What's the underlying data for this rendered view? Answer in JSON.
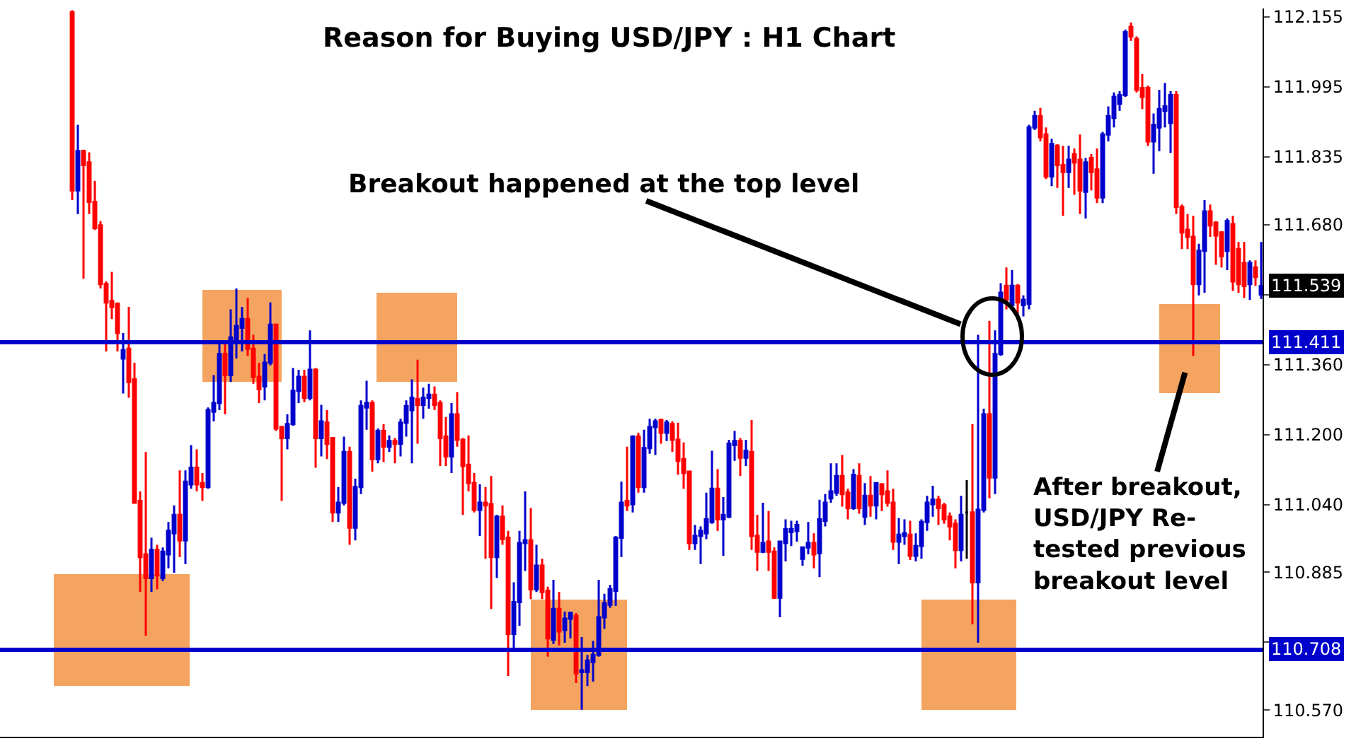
{
  "chart_data": {
    "type": "candlestick",
    "title": "Reason for Buying USD/JPY : H1 Chart",
    "categories": [
      null,
      null,
      null,
      null,
      null,
      null,
      null,
      null,
      null,
      null,
      null,
      null,
      null,
      null,
      null,
      null,
      null,
      null,
      null,
      null,
      null,
      null,
      null,
      null,
      null,
      null,
      null,
      null,
      null,
      null,
      null,
      null,
      null,
      null,
      null,
      null,
      null,
      null,
      null,
      null,
      null,
      null,
      null,
      null,
      null,
      null,
      null,
      null,
      null,
      null,
      null,
      null,
      null,
      null,
      null,
      null,
      null,
      null,
      null,
      null,
      null,
      null,
      null,
      null,
      null,
      null,
      null,
      null,
      null,
      null,
      null,
      null,
      null,
      null,
      null,
      null,
      null,
      null,
      null,
      null,
      null,
      null,
      null,
      null,
      null,
      null,
      null,
      null,
      null,
      null,
      null,
      null,
      null,
      null,
      null,
      null,
      null,
      null,
      null,
      null,
      null,
      null,
      null,
      null,
      null,
      null,
      null,
      null,
      null,
      null,
      null,
      null,
      null,
      null,
      null,
      null,
      null,
      null,
      null,
      null,
      null,
      null,
      null,
      null,
      null,
      null,
      null,
      null,
      null,
      null,
      null,
      null,
      null,
      null,
      null,
      null,
      null,
      null,
      null,
      null,
      null,
      null,
      null,
      null,
      null,
      null,
      null,
      null,
      null,
      null,
      null,
      null,
      null,
      null,
      null,
      null,
      null,
      null,
      null,
      null,
      null,
      null,
      null,
      null,
      null,
      null,
      null,
      null,
      null,
      null,
      null,
      null,
      null,
      null,
      null,
      null,
      null,
      null,
      null,
      null,
      null,
      null,
      null,
      null,
      null,
      null,
      null,
      null,
      null,
      null,
      null,
      null,
      null,
      null,
      null,
      null,
      null,
      null,
      null,
      null,
      null,
      null,
      null,
      null,
      null,
      null,
      null,
      null,
      null,
      null,
      null
    ],
    "ohlc": [
      [
        112.165,
        112.17,
        111.736,
        111.758
      ],
      [
        111.758,
        111.908,
        111.704,
        111.848
      ],
      [
        111.848,
        111.851,
        111.556,
        111.816
      ],
      [
        111.822,
        111.845,
        111.704,
        111.732
      ],
      [
        111.732,
        111.78,
        111.668,
        111.672
      ],
      [
        111.678,
        111.688,
        111.534,
        111.544
      ],
      [
        111.544,
        111.55,
        111.39,
        111.502
      ],
      [
        111.505,
        111.572,
        111.464,
        111.492
      ],
      [
        111.499,
        111.502,
        111.39,
        111.432
      ],
      [
        111.374,
        111.432,
        111.294,
        111.393
      ],
      [
        111.396,
        111.492,
        111.284,
        111.32
      ],
      [
        111.326,
        111.364,
        111.044,
        111.044
      ],
      [
        111.048,
        111.07,
        110.84,
        110.92
      ],
      [
        110.926,
        111.16,
        110.74,
        110.872
      ],
      [
        110.872,
        110.964,
        110.84,
        110.936
      ],
      [
        110.936,
        110.948,
        110.846,
        110.878
      ],
      [
        110.872,
        110.942,
        110.865,
        110.932
      ],
      [
        110.926,
        111.0,
        110.894,
        110.98
      ],
      [
        110.974,
        111.038,
        110.884,
        111.016
      ],
      [
        111.016,
        111.118,
        110.92,
        110.958
      ],
      [
        110.958,
        111.118,
        110.904,
        111.092
      ],
      [
        111.086,
        111.176,
        111.076,
        111.124
      ],
      [
        111.124,
        111.166,
        111.07,
        111.086
      ],
      [
        111.089,
        111.112,
        111.048,
        111.08
      ],
      [
        111.08,
        111.262,
        111.076,
        111.256
      ],
      [
        111.252,
        111.336,
        111.23,
        111.272
      ],
      [
        111.272,
        111.412,
        111.256,
        111.384
      ],
      [
        111.384,
        111.412,
        111.246,
        111.336
      ],
      [
        111.336,
        111.486,
        111.32,
        111.422
      ],
      [
        111.416,
        111.534,
        111.374,
        111.448
      ],
      [
        111.444,
        111.492,
        111.39,
        111.464
      ],
      [
        111.464,
        111.512,
        111.38,
        111.396
      ],
      [
        111.396,
        111.428,
        111.316,
        111.332
      ],
      [
        111.332,
        111.364,
        111.272,
        111.304
      ],
      [
        111.31,
        111.384,
        111.278,
        111.364
      ],
      [
        111.364,
        111.502,
        111.358,
        111.451
      ],
      [
        111.451,
        111.454,
        111.208,
        111.214
      ],
      [
        111.217,
        111.22,
        111.048,
        111.192
      ],
      [
        111.192,
        111.246,
        111.166,
        111.224
      ],
      [
        111.224,
        111.352,
        111.22,
        111.3
      ],
      [
        111.3,
        111.348,
        111.272,
        111.332
      ],
      [
        111.332,
        111.348,
        111.274,
        111.284
      ],
      [
        111.284,
        111.438,
        111.278,
        111.348
      ],
      [
        111.348,
        111.352,
        111.124,
        111.192
      ],
      [
        111.192,
        111.268,
        111.15,
        111.23
      ],
      [
        111.227,
        111.256,
        111.144,
        111.179
      ],
      [
        111.192,
        111.192,
        111.0,
        111.022
      ],
      [
        111.022,
        111.08,
        111.0,
        111.044
      ],
      [
        111.044,
        111.195,
        111.038,
        111.16
      ],
      [
        111.16,
        111.172,
        110.948,
        110.987
      ],
      [
        110.987,
        111.099,
        110.958,
        111.08
      ],
      [
        111.08,
        111.278,
        111.064,
        111.265
      ],
      [
        111.262,
        111.323,
        111.211,
        111.272
      ],
      [
        111.272,
        111.278,
        111.115,
        111.144
      ],
      [
        111.144,
        111.214,
        111.134,
        111.208
      ],
      [
        111.208,
        111.224,
        111.137,
        111.172
      ],
      [
        111.172,
        111.198,
        111.16,
        111.185
      ],
      [
        111.185,
        111.192,
        111.134,
        111.179
      ],
      [
        111.179,
        111.236,
        111.15,
        111.227
      ],
      [
        111.227,
        111.278,
        111.195,
        111.265
      ],
      [
        111.256,
        111.326,
        111.134,
        111.284
      ],
      [
        111.281,
        111.371,
        111.179,
        111.268
      ],
      [
        111.268,
        111.307,
        111.236,
        111.284
      ],
      [
        111.284,
        111.316,
        111.259,
        111.291
      ],
      [
        111.291,
        111.31,
        111.256,
        111.268
      ],
      [
        111.272,
        111.278,
        111.128,
        111.192
      ],
      [
        111.195,
        111.24,
        111.128,
        111.15
      ],
      [
        111.15,
        111.272,
        111.112,
        111.246
      ],
      [
        111.246,
        111.297,
        111.172,
        111.188
      ],
      [
        111.188,
        111.192,
        111.016,
        111.128
      ],
      [
        111.131,
        111.198,
        111.07,
        111.089
      ],
      [
        111.089,
        111.112,
        111.022,
        111.028
      ],
      [
        111.028,
        111.086,
        110.968,
        111.044
      ],
      [
        111.044,
        111.08,
        110.916,
        111.038
      ],
      [
        111.041,
        111.105,
        110.801,
        110.92
      ],
      [
        110.92,
        111.016,
        110.872,
        111.012
      ],
      [
        111.012,
        111.038,
        110.948,
        110.961
      ],
      [
        110.964,
        110.98,
        110.648,
        110.744
      ],
      [
        110.744,
        110.862,
        110.712,
        110.817
      ],
      [
        110.817,
        110.98,
        110.763,
        110.952
      ],
      [
        110.952,
        111.07,
        110.888,
        110.958
      ],
      [
        110.958,
        111.032,
        110.824,
        110.846
      ],
      [
        110.846,
        110.948,
        110.84,
        110.9
      ],
      [
        110.9,
        110.916,
        110.824,
        110.84
      ],
      [
        110.843,
        110.852,
        110.692,
        110.734
      ],
      [
        110.731,
        110.868,
        110.721,
        110.801
      ],
      [
        110.801,
        110.84,
        110.718,
        110.75
      ],
      [
        110.753,
        110.795,
        110.724,
        110.779
      ],
      [
        110.779,
        110.795,
        110.734,
        110.792
      ],
      [
        110.785,
        110.792,
        110.632,
        110.654
      ],
      [
        110.657,
        110.737,
        110.571,
        110.661
      ],
      [
        110.657,
        110.696,
        110.625,
        110.683
      ],
      [
        110.68,
        110.728,
        110.635,
        110.696
      ],
      [
        110.696,
        110.868,
        110.692,
        110.782
      ],
      [
        110.782,
        110.836,
        110.756,
        110.814
      ],
      [
        110.811,
        110.856,
        110.804,
        110.846
      ],
      [
        110.843,
        110.968,
        110.808,
        110.964
      ],
      [
        110.964,
        111.092,
        110.92,
        111.044
      ],
      [
        111.048,
        111.172,
        111.025,
        111.038
      ],
      [
        111.041,
        111.198,
        111.022,
        111.195
      ],
      [
        111.195,
        111.204,
        111.067,
        111.08
      ],
      [
        111.08,
        111.211,
        111.067,
        111.169
      ],
      [
        111.169,
        111.236,
        111.156,
        111.217
      ],
      [
        111.217,
        111.236,
        111.153,
        111.23
      ],
      [
        111.233,
        111.236,
        111.179,
        111.204
      ],
      [
        111.204,
        111.233,
        111.185,
        111.227
      ],
      [
        111.224,
        111.23,
        111.16,
        111.188
      ],
      [
        111.188,
        111.227,
        111.108,
        111.14
      ],
      [
        111.144,
        111.182,
        111.076,
        111.112
      ],
      [
        111.115,
        111.115,
        110.936,
        110.952
      ],
      [
        110.952,
        110.993,
        110.936,
        110.968
      ],
      [
        110.968,
        110.99,
        110.904,
        110.98
      ],
      [
        110.974,
        111.067,
        110.961,
        111.006
      ],
      [
        111.0,
        111.163,
        110.996,
        111.076
      ],
      [
        111.076,
        111.121,
        110.98,
        111.006
      ],
      [
        111.006,
        111.057,
        110.923,
        111.016
      ],
      [
        111.012,
        111.188,
        111.009,
        111.179
      ],
      [
        111.176,
        111.208,
        111.14,
        111.185
      ],
      [
        111.185,
        111.192,
        111.105,
        111.147
      ],
      [
        111.147,
        111.188,
        111.128,
        111.163
      ],
      [
        111.16,
        111.233,
        110.936,
        110.968
      ],
      [
        110.968,
        111.016,
        110.888,
        110.932
      ],
      [
        110.932,
        111.044,
        110.929,
        110.952
      ],
      [
        110.955,
        111.025,
        110.888,
        110.932
      ],
      [
        110.932,
        110.942,
        110.824,
        110.827
      ],
      [
        110.827,
        110.955,
        110.782,
        110.955
      ],
      [
        110.952,
        111.006,
        110.91,
        110.984
      ],
      [
        110.977,
        111.003,
        110.945,
        110.984
      ],
      [
        110.98,
        111.003,
        110.955,
        110.993
      ],
      [
        110.916,
        110.942,
        110.9,
        110.942
      ],
      [
        110.942,
        111.0,
        110.926,
        110.952
      ],
      [
        110.952,
        110.974,
        110.894,
        110.926
      ],
      [
        110.929,
        111.051,
        110.874,
        111.006
      ],
      [
        111.003,
        111.064,
        110.99,
        111.044
      ],
      [
        111.054,
        111.134,
        111.044,
        111.07
      ],
      [
        111.067,
        111.134,
        111.06,
        111.105
      ],
      [
        111.105,
        111.153,
        111.035,
        111.064
      ],
      [
        111.067,
        111.076,
        111.006,
        111.032
      ],
      [
        111.032,
        111.121,
        111.028,
        111.108
      ],
      [
        111.105,
        111.134,
        111.019,
        111.032
      ],
      [
        111.012,
        111.089,
        110.993,
        111.06
      ],
      [
        111.06,
        111.105,
        111.012,
        111.038
      ],
      [
        111.038,
        111.089,
        111.006,
        111.089
      ],
      [
        111.086,
        111.089,
        111.025,
        111.064
      ],
      [
        111.07,
        111.118,
        111.035,
        111.044
      ],
      [
        111.044,
        111.076,
        110.936,
        110.955
      ],
      [
        110.955,
        111.009,
        110.904,
        110.971
      ],
      [
        110.968,
        111.006,
        110.948,
        110.974
      ],
      [
        110.971,
        111.003,
        110.913,
        110.923
      ],
      [
        110.923,
        110.974,
        110.91,
        110.945
      ],
      [
        110.945,
        111.006,
        110.916,
        111.0
      ],
      [
        111.0,
        111.06,
        110.98,
        111.044
      ],
      [
        111.041,
        111.083,
        111.012,
        111.051
      ],
      [
        111.051,
        111.06,
        110.993,
        111.032
      ],
      [
        111.038,
        111.044,
        110.996,
        111.006
      ],
      [
        111.012,
        111.022,
        110.958,
        110.99
      ],
      [
        110.996,
        111.006,
        110.894,
        110.936
      ],
      [
        110.936,
        111.06,
        110.91,
        111.016
      ],
      [
        111.022,
        111.096,
        110.916,
        111.022
      ],
      [
        111.022,
        111.224,
        110.766,
        110.862
      ],
      [
        110.862,
        111.428,
        110.724,
        111.028
      ],
      [
        111.028,
        111.259,
        111.022,
        111.246
      ],
      [
        111.246,
        111.46,
        111.054,
        111.102
      ],
      [
        111.102,
        111.438,
        111.064,
        111.384
      ],
      [
        111.384,
        111.546,
        111.38,
        111.524
      ],
      [
        111.54,
        111.582,
        111.486,
        111.508
      ],
      [
        111.496,
        111.576,
        111.486,
        111.54
      ],
      [
        111.54,
        111.544,
        111.47,
        111.502
      ],
      [
        111.496,
        111.518,
        111.47,
        111.508
      ],
      [
        111.499,
        111.908,
        111.486,
        111.902
      ],
      [
        111.902,
        111.94,
        111.896,
        111.928
      ],
      [
        111.928,
        111.947,
        111.87,
        111.88
      ],
      [
        111.886,
        111.902,
        111.784,
        111.79
      ],
      [
        111.79,
        111.876,
        111.768,
        111.864
      ],
      [
        111.86,
        111.864,
        111.764,
        111.816
      ],
      [
        111.816,
        111.86,
        111.7,
        111.8
      ],
      [
        111.8,
        111.86,
        111.764,
        111.828
      ],
      [
        111.841,
        111.854,
        111.748,
        111.822
      ],
      [
        111.828,
        111.886,
        111.704,
        111.758
      ],
      [
        111.755,
        111.832,
        111.694,
        111.822
      ],
      [
        111.832,
        111.841,
        111.758,
        111.8
      ],
      [
        111.806,
        111.854,
        111.729,
        111.742
      ],
      [
        111.742,
        111.892,
        111.729,
        111.886
      ],
      [
        111.886,
        111.95,
        111.87,
        111.928
      ],
      [
        111.924,
        111.982,
        111.902,
        111.972
      ],
      [
        111.956,
        111.985,
        111.94,
        111.976
      ],
      [
        111.976,
        112.126,
        111.972,
        112.12
      ],
      [
        112.132,
        112.142,
        112.1,
        112.11
      ],
      [
        112.104,
        112.11,
        111.982,
        111.988
      ],
      [
        111.992,
        112.024,
        111.944,
        111.972
      ],
      [
        111.992,
        111.998,
        111.86,
        111.87
      ],
      [
        111.87,
        111.934,
        111.796,
        111.908
      ],
      [
        111.902,
        111.988,
        111.848,
        111.944
      ],
      [
        111.94,
        112.004,
        111.902,
        111.95
      ],
      [
        111.912,
        111.985,
        111.844,
        111.976
      ],
      [
        111.976,
        111.985,
        111.704,
        111.72
      ],
      [
        111.72,
        111.726,
        111.624,
        111.662
      ],
      [
        111.668,
        111.704,
        111.624,
        111.652
      ],
      [
        111.652,
        111.7,
        111.38,
        111.544
      ],
      [
        111.544,
        111.636,
        111.518,
        111.62
      ],
      [
        111.62,
        111.736,
        111.524,
        111.71
      ],
      [
        111.71,
        111.726,
        111.652,
        111.678
      ],
      [
        111.684,
        111.688,
        111.588,
        111.655
      ],
      [
        111.662,
        111.665,
        111.582,
        111.608
      ],
      [
        111.62,
        111.694,
        111.576,
        111.688
      ],
      [
        111.681,
        111.7,
        111.528,
        111.55
      ],
      [
        111.624,
        111.64,
        111.524,
        111.544
      ],
      [
        111.592,
        111.64,
        111.512,
        111.54
      ],
      [
        111.544,
        111.598,
        111.508,
        111.592
      ],
      [
        111.582,
        111.598,
        111.54,
        111.56
      ],
      [
        111.52,
        111.64,
        111.51,
        111.539
      ]
    ],
    "colors": [
      "#ff0000",
      "#0000cc",
      "#ff0000",
      "#ff0000",
      "#ff0000",
      "#ff0000",
      "#ff0000",
      "#ff0000",
      "#ff0000",
      "#0000cc",
      "#ff0000",
      "#ff0000",
      "#ff0000",
      "#ff0000",
      "#0000cc",
      "#ff0000",
      "#0000cc",
      "#0000cc",
      "#0000cc",
      "#ff0000",
      "#0000cc",
      "#0000cc",
      "#ff0000",
      "#ff0000",
      "#0000cc",
      "#0000cc",
      "#0000cc",
      "#ff0000",
      "#0000cc",
      "#0000cc",
      "#0000cc",
      "#ff0000",
      "#ff0000",
      "#ff0000",
      "#0000cc",
      "#0000cc",
      "#ff0000",
      "#ff0000",
      "#0000cc",
      "#0000cc",
      "#0000cc",
      "#ff0000",
      "#0000cc",
      "#ff0000",
      "#0000cc",
      "#ff0000",
      "#ff0000",
      "#0000cc",
      "#0000cc",
      "#ff0000",
      "#0000cc",
      "#0000cc",
      "#0000cc",
      "#ff0000",
      "#0000cc",
      "#ff0000",
      "#0000cc",
      "#ff0000",
      "#0000cc",
      "#0000cc",
      "#0000cc",
      "#ff0000",
      "#0000cc",
      "#0000cc",
      "#ff0000",
      "#ff0000",
      "#ff0000",
      "#0000cc",
      "#ff0000",
      "#ff0000",
      "#ff0000",
      "#ff0000",
      "#0000cc",
      "#ff0000",
      "#ff0000",
      "#0000cc",
      "#ff0000",
      "#ff0000",
      "#0000cc",
      "#0000cc",
      "#0000cc",
      "#ff0000",
      "#0000cc",
      "#ff0000",
      "#ff0000",
      "#0000cc",
      "#ff0000",
      "#0000cc",
      "#0000cc",
      "#ff0000",
      "#0000cc",
      "#0000cc",
      "#0000cc",
      "#0000cc",
      "#0000cc",
      "#0000cc",
      "#0000cc",
      "#0000cc",
      "#ff0000",
      "#0000cc",
      "#ff0000",
      "#0000cc",
      "#0000cc",
      "#0000cc",
      "#ff0000",
      "#0000cc",
      "#ff0000",
      "#ff0000",
      "#ff0000",
      "#ff0000",
      "#0000cc",
      "#0000cc",
      "#0000cc",
      "#0000cc",
      "#ff0000",
      "#0000cc",
      "#0000cc",
      "#0000cc",
      "#ff0000",
      "#0000cc",
      "#ff0000",
      "#ff0000",
      "#0000cc",
      "#ff0000",
      "#ff0000",
      "#0000cc",
      "#0000cc",
      "#0000cc",
      "#0000cc",
      "#0000cc",
      "#0000cc",
      "#ff0000",
      "#0000cc",
      "#0000cc",
      "#0000cc",
      "#0000cc",
      "#ff0000",
      "#ff0000",
      "#0000cc",
      "#ff0000",
      "#0000cc",
      "#ff0000",
      "#0000cc",
      "#ff0000",
      "#ff0000",
      "#ff0000",
      "#0000cc",
      "#0000cc",
      "#ff0000",
      "#0000cc",
      "#0000cc",
      "#0000cc",
      "#0000cc",
      "#ff0000",
      "#ff0000",
      "#ff0000",
      "#ff0000",
      "#0000cc",
      "#000000",
      "#ff0000",
      "#0000cc",
      "#0000cc",
      "#ff0000",
      "#0000cc",
      "#0000cc",
      "#ff0000",
      "#0000cc",
      "#ff0000",
      "#0000cc",
      "#0000cc",
      "#0000cc",
      "#ff0000",
      "#ff0000",
      "#0000cc",
      "#ff0000",
      "#ff0000",
      "#0000cc",
      "#ff0000",
      "#ff0000",
      "#0000cc",
      "#ff0000",
      "#ff0000",
      "#0000cc",
      "#0000cc",
      "#0000cc",
      "#0000cc",
      "#0000cc",
      "#ff0000",
      "#ff0000",
      "#ff0000",
      "#ff0000",
      "#0000cc",
      "#0000cc",
      "#0000cc",
      "#0000cc",
      "#ff0000",
      "#ff0000",
      "#ff0000",
      "#ff0000",
      "#0000cc",
      "#0000cc",
      "#ff0000",
      "#ff0000",
      "#ff0000",
      "#0000cc",
      "#ff0000",
      "#ff0000",
      "#ff0000",
      "#0000cc",
      "#ff0000",
      "#0000cc"
    ],
    "ylim": [
      110.509,
      112.174
    ],
    "yticks": [
      {
        "value": 112.155,
        "label": "112.155"
      },
      {
        "value": 111.995,
        "label": "111.995"
      },
      {
        "value": 111.835,
        "label": "111.835"
      },
      {
        "value": 111.68,
        "label": "111.680"
      },
      {
        "value": 111.52,
        "label": null
      },
      {
        "value": 111.36,
        "label": "111.360"
      },
      {
        "value": 111.2,
        "label": "111.200"
      },
      {
        "value": 111.04,
        "label": "111.040"
      },
      {
        "value": 110.885,
        "label": "110.885"
      },
      {
        "value": 110.725,
        "label": null
      },
      {
        "value": 110.57,
        "label": "110.570"
      }
    ],
    "tick_labels": "y",
    "grid": false,
    "legend": false,
    "ref_lines": [
      {
        "axis": "y",
        "value": 111.411,
        "label": "111.411",
        "color": "#0000cc"
      },
      {
        "axis": "y",
        "value": 110.708,
        "label": "110.708",
        "color": "#0000cc"
      }
    ],
    "annotations": [
      "Breakout happened at the top level",
      "After breakout,\nUSD/JPY Re-\ntested previous\nbreakout level",
      "111.539"
    ]
  }
}
